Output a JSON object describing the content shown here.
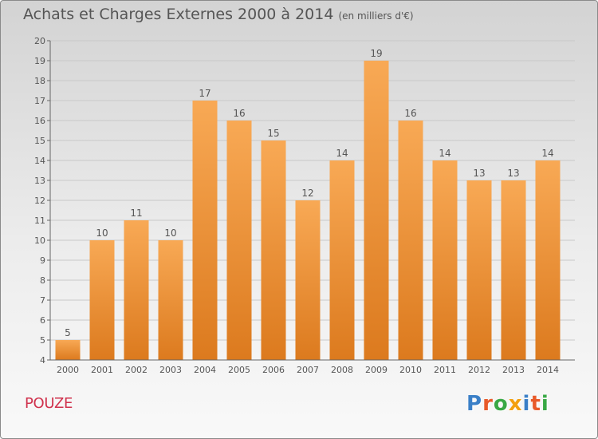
{
  "header": {
    "title": "Achats et Charges Externes 2000 à 2014",
    "subtitle": "(en milliers d'€)"
  },
  "footer": {
    "commune": "POUZE",
    "logo_letters": [
      "P",
      "r",
      "o",
      "x",
      "i",
      "t",
      "i"
    ],
    "logo_colors": [
      "#3a7fc7",
      "#e85a2a",
      "#39a845",
      "#f3a00f",
      "#3a7fc7",
      "#e85a2a",
      "#39a845"
    ]
  },
  "colors": {
    "bar_light": "#f8a955",
    "bar_dark": "#dc7a1e",
    "grid": "#c9c9c9",
    "text": "#555555",
    "commune": "#d0324d"
  },
  "chart_data": {
    "type": "bar",
    "title": "Achats et Charges Externes 2000 à 2014",
    "subtitle": "(en milliers d'€)",
    "categories": [
      "2000",
      "2001",
      "2002",
      "2003",
      "2004",
      "2005",
      "2006",
      "2007",
      "2008",
      "2009",
      "2010",
      "2011",
      "2012",
      "2013",
      "2014"
    ],
    "values": [
      5,
      10,
      11,
      10,
      17,
      16,
      15,
      12,
      14,
      19,
      16,
      14,
      13,
      13,
      14
    ],
    "ylim": [
      4,
      20
    ],
    "yticks": [
      4,
      5,
      6,
      7,
      8,
      9,
      10,
      11,
      12,
      13,
      14,
      15,
      16,
      17,
      18,
      19,
      20
    ],
    "grid": true,
    "data_labels": true
  }
}
